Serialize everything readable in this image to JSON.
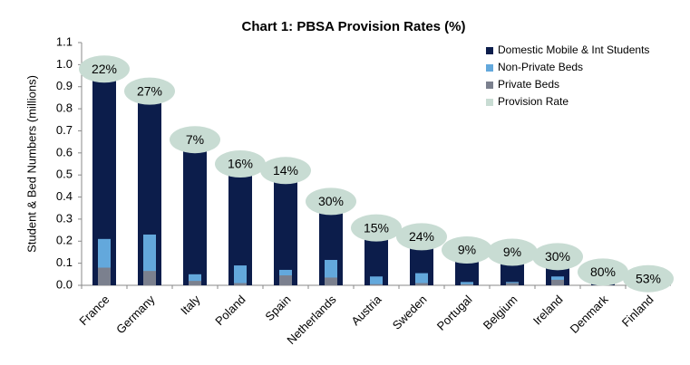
{
  "chart_data": {
    "type": "overlap-bar",
    "title": "Chart 1: PBSA Provision Rates (%)",
    "y_label": "Student & Bed Numbers (millions)",
    "categories": [
      "France",
      "Germany",
      "Italy",
      "Poland",
      "Spain",
      "Netherlands",
      "Austria",
      "Sweden",
      "Portugal",
      "Belgium",
      "Ireland",
      "Denmark",
      "Finland"
    ],
    "series": [
      {
        "name": "Domestic Mobile & Int Students",
        "color": "#0c1d4b",
        "values": [
          0.98,
          0.88,
          0.66,
          0.55,
          0.52,
          0.38,
          0.26,
          0.22,
          0.16,
          0.15,
          0.13,
          0.06,
          0.03
        ]
      },
      {
        "name": "Non-Private Beds",
        "color": "#63a8dc",
        "values": [
          0.21,
          0.23,
          0.05,
          0.09,
          0.07,
          0.115,
          0.04,
          0.055,
          0.015,
          0.015,
          0.04,
          0.04,
          0.02
        ]
      },
      {
        "name": "Private Beds",
        "color": "#7b808e",
        "values": [
          0.08,
          0.065,
          0.02,
          0.01,
          0.045,
          0.035,
          0.005,
          0.01,
          0.005,
          0.01,
          0.025,
          0.01,
          0.01
        ]
      },
      {
        "name": "Provision Rate",
        "color": "#c8dcd3",
        "values": [
          22,
          27,
          7,
          16,
          14,
          30,
          15,
          24,
          9,
          9,
          30,
          80,
          53
        ],
        "value_labels": [
          "22%",
          "27%",
          "7%",
          "16%",
          "14%",
          "30%",
          "15%",
          "24%",
          "9%",
          "9%",
          "30%",
          "80%",
          "53%"
        ]
      }
    ],
    "ylim": [
      0,
      1.1
    ],
    "yticks": [
      {
        "value": 0,
        "label": "0.0"
      },
      0.1,
      0.2,
      0.3,
      0.4,
      0.5,
      0.6,
      0.7,
      0.8,
      0.9,
      {
        "value": 1,
        "label": "1.0"
      },
      1.1
    ],
    "legend": "top-right"
  }
}
